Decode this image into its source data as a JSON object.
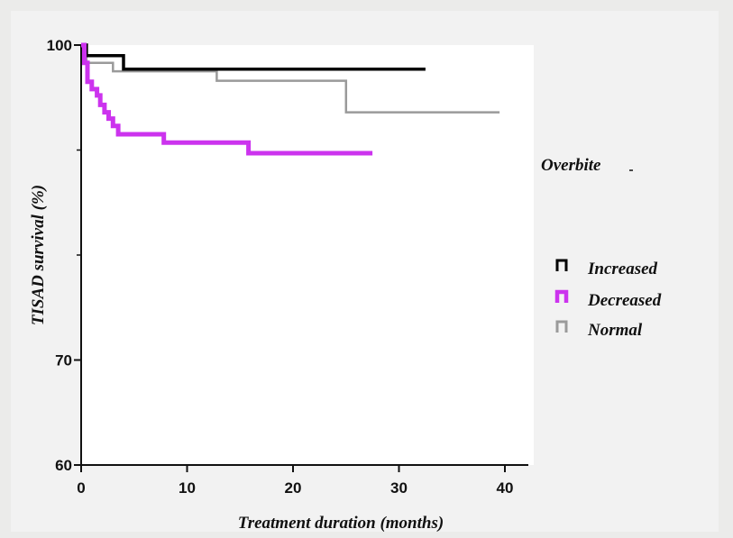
{
  "chart_data": {
    "type": "line",
    "step": true,
    "xlabel": "Treatment duration (months)",
    "ylabel": "TISAD survival (%)",
    "xlim": [
      0,
      40
    ],
    "ylim": [
      60,
      100
    ],
    "x_ticks": [
      0,
      10,
      20,
      30,
      40
    ],
    "y_ticks": [
      60,
      70,
      100
    ],
    "legend_title": "Overbite",
    "legend_position": "right",
    "series": [
      {
        "name": "Increased",
        "color": "#000000",
        "points": [
          [
            0,
            100
          ],
          [
            0.5,
            99
          ],
          [
            4,
            99
          ],
          [
            4,
            97.7
          ],
          [
            32.5,
            97.7
          ]
        ]
      },
      {
        "name": "Decreased",
        "color": "#cc33ee",
        "points": [
          [
            0,
            100
          ],
          [
            0.3,
            98.3
          ],
          [
            0.6,
            96.5
          ],
          [
            1.0,
            95.8
          ],
          [
            1.5,
            95.2
          ],
          [
            1.8,
            94.3
          ],
          [
            2.2,
            93.6
          ],
          [
            2.6,
            93.0
          ],
          [
            3.0,
            92.3
          ],
          [
            3.5,
            91.5
          ],
          [
            7.5,
            91.5
          ],
          [
            7.8,
            90.7
          ],
          [
            15.5,
            90.7
          ],
          [
            15.8,
            89.7
          ],
          [
            27.5,
            89.7
          ]
        ]
      },
      {
        "name": "Normal",
        "color": "#9a9a9a",
        "points": [
          [
            0,
            100
          ],
          [
            0.5,
            98.3
          ],
          [
            1.5,
            98.3
          ],
          [
            3,
            97.5
          ],
          [
            12.5,
            97.5
          ],
          [
            12.8,
            96.6
          ],
          [
            24.8,
            96.6
          ],
          [
            25,
            93.6
          ],
          [
            39.5,
            93.6
          ]
        ]
      }
    ]
  }
}
